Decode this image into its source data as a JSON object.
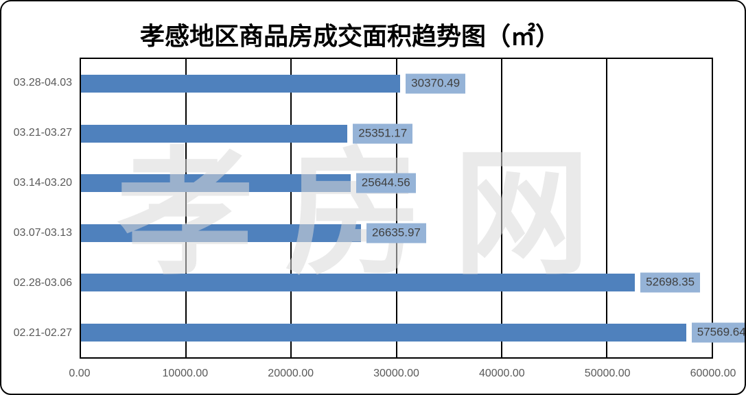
{
  "title": "孝感地区商品房成交面积趋势图（㎡）",
  "watermark": "孝房网",
  "colors": {
    "bar": "#4F81BD",
    "data_label_bg": "#95B3D7",
    "data_label_text": "#3F3F3F",
    "axis_text": "#595959",
    "gridline": "#000000",
    "watermark": "#D9D9D9",
    "border": "#000000",
    "background": "#FFFFFF"
  },
  "chart_data": {
    "type": "bar",
    "orientation": "horizontal",
    "title": "孝感地区商品房成交面积趋势图（㎡）",
    "categories": [
      "03.28-04.03",
      "03.21-03.27",
      "03.14-03.20",
      "03.07-03.13",
      "02.28-03.06",
      "02.21-02.27"
    ],
    "values": [
      30370.49,
      25351.17,
      25644.56,
      26635.97,
      52698.35,
      57569.64
    ],
    "data_labels": [
      "30370.49",
      "25351.17",
      "25644.56",
      "26635.97",
      "52698.35",
      "57569.64"
    ],
    "xlabel": "",
    "ylabel": "",
    "xlim": [
      0,
      60000
    ],
    "x_ticks": [
      "0.00",
      "10000.00",
      "20000.00",
      "30000.00",
      "40000.00",
      "50000.00",
      "60000.00"
    ],
    "grid": true,
    "legend_position": "none"
  }
}
